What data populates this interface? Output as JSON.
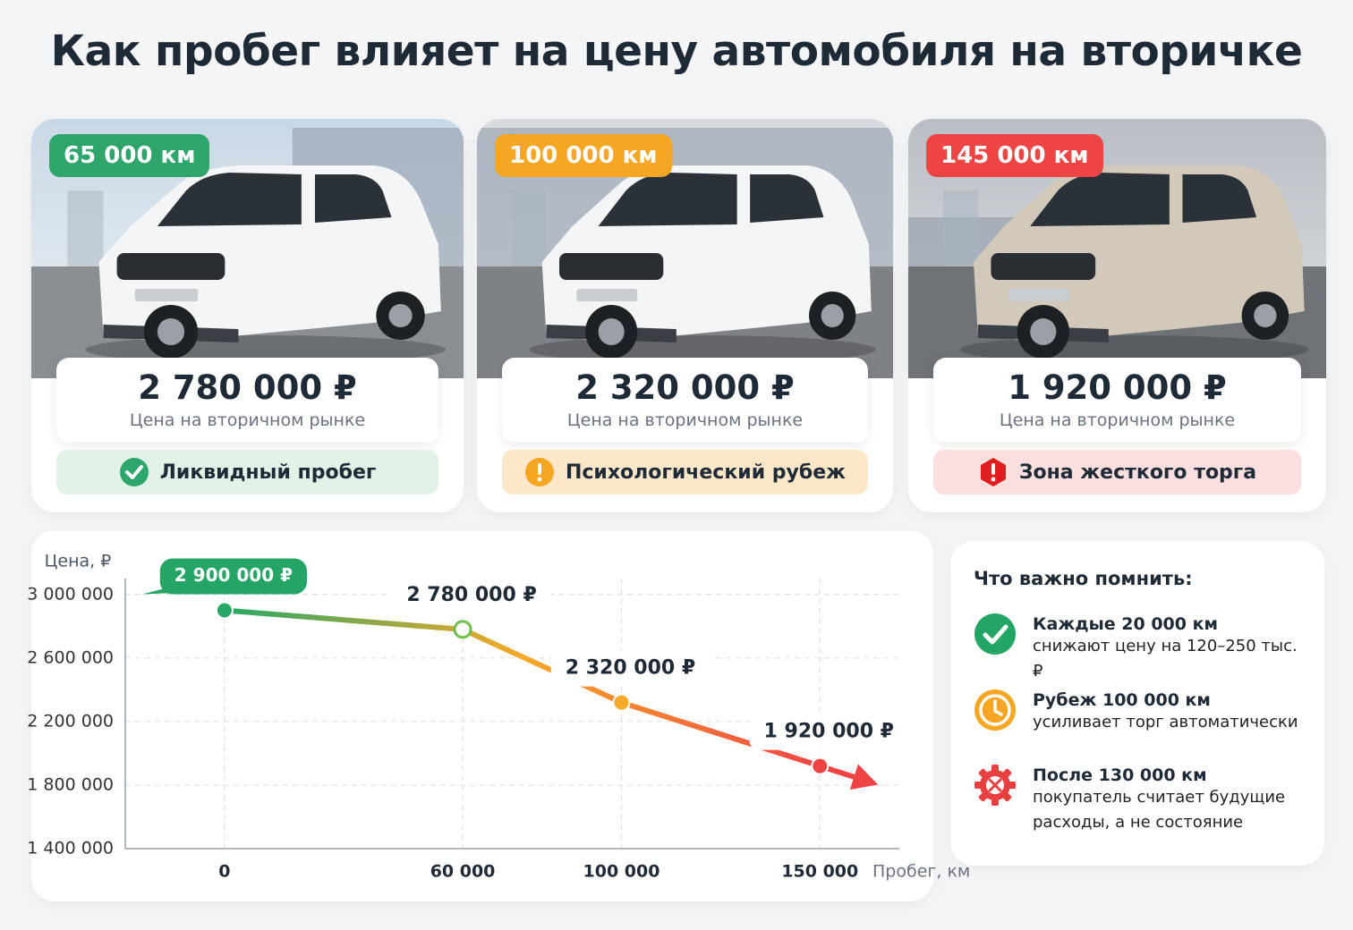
{
  "title": "Как пробег влияет на цену автомобиля на вторичке",
  "cards": [
    {
      "mileage": "65 000 км",
      "price": "2 780 000 ₽",
      "price_note": "Цена на вторичном рынке",
      "status": "Ликвидный пробег",
      "color": "#2ea56a"
    },
    {
      "mileage": "100 000 км",
      "price": "2 320 000 ₽",
      "price_note": "Цена на вторичном рынке",
      "status": "Психологический рубеж",
      "color": "#f5a623"
    },
    {
      "mileage": "145 000 км",
      "price": "1 920 000 ₽",
      "price_note": "Цена на вторичном рынке",
      "status": "Зона жесткого торга",
      "color": "#ef4444"
    }
  ],
  "chart_data": {
    "type": "line",
    "y_label": "Цена, ₽",
    "x_label": "Пробег, км",
    "x": [
      0,
      60000,
      100000,
      150000
    ],
    "series": [
      {
        "colors": [
          "#27a866",
          "#f7a928",
          "#f04444"
        ],
        "values": [
          2900000,
          2780000,
          2320000,
          1920000
        ],
        "value_labels": [
          "2 900 000 ₽",
          "2 780 000 ₽",
          "2 320 000 ₽",
          "1 920 000 ₽"
        ]
      }
    ],
    "xlim": [
      -25000,
      170000
    ],
    "ylim": [
      1400000,
      3100000
    ],
    "xticks": [
      0,
      {
        "value": 60000,
        "label": "60 000"
      },
      {
        "value": 100000,
        "label": "100 000"
      },
      {
        "value": 150000,
        "label": "150 000"
      }
    ],
    "yticks": [
      {
        "value": 1400000,
        "label": "1 400 000"
      },
      {
        "value": 1800000,
        "label": "1 800 000"
      },
      {
        "value": 2200000,
        "label": "2 200 000"
      },
      {
        "value": 2600000,
        "label": "2 600 000"
      },
      {
        "value": 3000000,
        "label": "3 000 000"
      }
    ],
    "grid": true
  },
  "tips": {
    "heading": "Что важно помнить:",
    "items": [
      {
        "title": "Каждые 20 000 км",
        "text": "снижают цену на 120–250 тыс. ₽"
      },
      {
        "title": "Рубеж 100 000 км",
        "text": "усиливает торг автоматически"
      },
      {
        "title": "После 130 000 км",
        "text": "покупатель считает будущие расходы, а не состояние"
      }
    ]
  }
}
